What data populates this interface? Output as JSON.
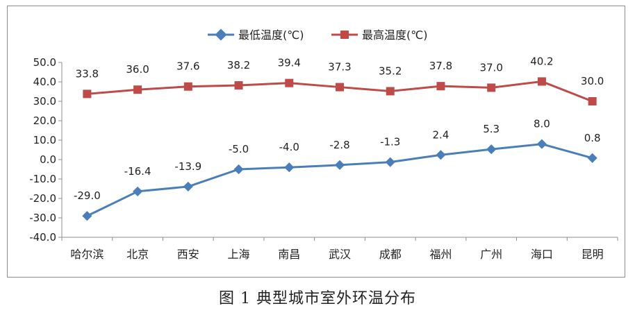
{
  "caption": "图 1  典型城市室外环温分布",
  "chart_data": {
    "type": "line",
    "title": "",
    "xlabel": "",
    "ylabel": "",
    "categories": [
      "哈尔滨",
      "北京",
      "西安",
      "上海",
      "南昌",
      "武汉",
      "成都",
      "福州",
      "广州",
      "海口",
      "昆明"
    ],
    "ylim": [
      -40,
      50
    ],
    "yticks": [
      50,
      40,
      30,
      20,
      10,
      0,
      -10,
      -20,
      -30,
      -40
    ],
    "ytick_labels": [
      "50.0",
      "40.0",
      "30.0",
      "20.0",
      "10.0",
      "0.0",
      "-10.0",
      "-20.0",
      "-30.0",
      "-40.0"
    ],
    "grid": false,
    "legend_position": "top-center",
    "series": [
      {
        "name": "最低温度(℃)",
        "color": "#4a7ebb",
        "marker": "diamond",
        "values": [
          -29.0,
          -16.4,
          -13.9,
          -5.0,
          -4.0,
          -2.8,
          -1.3,
          2.4,
          5.3,
          8.0,
          0.8
        ],
        "labels": [
          "-29.0",
          "-16.4",
          "-13.9",
          "-5.0",
          "-4.0",
          "-2.8",
          "-1.3",
          "2.4",
          "5.3",
          "8.0",
          "0.8"
        ]
      },
      {
        "name": "最高温度(℃)",
        "color": "#be4b48",
        "marker": "square",
        "values": [
          33.8,
          36.0,
          37.6,
          38.2,
          39.4,
          37.3,
          35.2,
          37.8,
          37.0,
          40.2,
          30.0
        ],
        "labels": [
          "33.8",
          "36.0",
          "37.6",
          "38.2",
          "39.4",
          "37.3",
          "35.2",
          "37.8",
          "37.0",
          "40.2",
          "30.0"
        ]
      }
    ]
  }
}
